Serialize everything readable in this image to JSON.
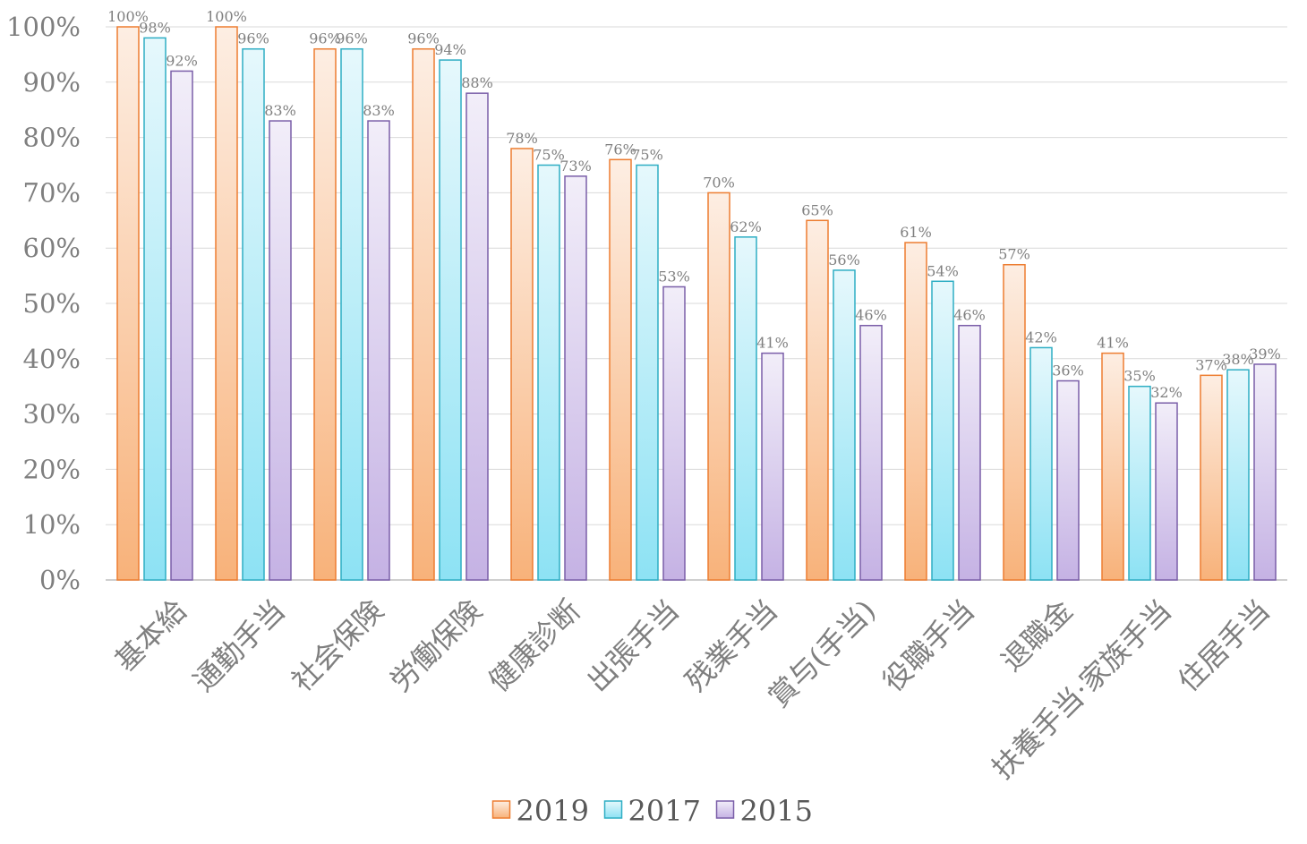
{
  "chart_data": {
    "type": "bar",
    "categories": [
      "基本給",
      "通勤手当",
      "社会保険",
      "労働保険",
      "健康診断",
      "出張手当",
      "残業手当",
      "賞与(手当)",
      "役職手当",
      "退職金",
      "扶養手当·家族手当",
      "住居手当"
    ],
    "series": [
      {
        "name": "2019",
        "color": "#ed7d31",
        "values": [
          100,
          100,
          96,
          96,
          78,
          76,
          70,
          65,
          61,
          57,
          41,
          37
        ],
        "labels": [
          "100%",
          "100%",
          "96%",
          "96%",
          "78%",
          "76%",
          "70%",
          "65%",
          "61%",
          "57%",
          "41%",
          "37%"
        ]
      },
      {
        "name": "2017",
        "color": "#2eaec4",
        "values": [
          98,
          96,
          96,
          94,
          75,
          75,
          62,
          56,
          54,
          42,
          35,
          38
        ],
        "labels": [
          "98%",
          "96%",
          "96%",
          "94%",
          "75%",
          "75%",
          "62%",
          "56%",
          "54%",
          "42%",
          "35%",
          "38%"
        ]
      },
      {
        "name": "2015",
        "color": "#7a5ea8",
        "values": [
          92,
          83,
          83,
          88,
          73,
          53,
          41,
          46,
          46,
          36,
          32,
          39
        ],
        "labels": [
          "92%",
          "83%",
          "83%",
          "88%",
          "73%",
          "53%",
          "41%",
          "46%",
          "46%",
          "36%",
          "32%",
          "39%"
        ]
      }
    ],
    "yticks": [
      "0%",
      "10%",
      "20%",
      "30%",
      "40%",
      "50%",
      "60%",
      "70%",
      "80%",
      "90%",
      "100%"
    ],
    "ylim": [
      0,
      100
    ],
    "grid": true,
    "legend": "bottom",
    "title": "",
    "xlabel": "",
    "ylabel": ""
  }
}
